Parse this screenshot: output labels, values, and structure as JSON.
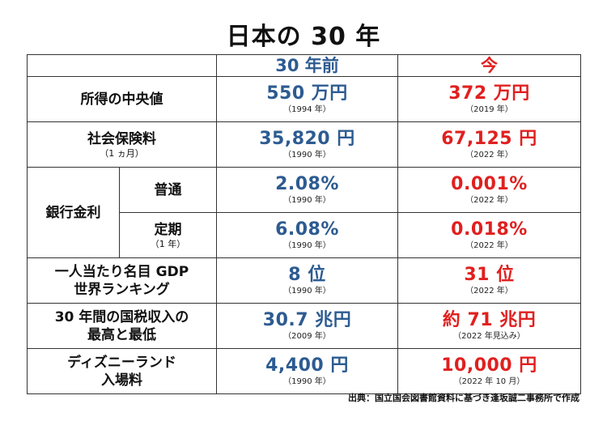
{
  "title": "日本の 30 年",
  "columns": {
    "then": "30 年前",
    "now": "今"
  },
  "rows": {
    "median_income": {
      "label": "所得の中央値",
      "then_value": "550 万円",
      "then_year": "（1994 年）",
      "now_value": "372 万円",
      "now_year": "（2019 年）"
    },
    "social_insurance": {
      "label": "社会保険料",
      "sublabel": "（1 ヵ月）",
      "then_value": "35,820 円",
      "then_year": "（1990 年）",
      "now_value": "67,125 円",
      "now_year": "（2022 年）"
    },
    "bank_interest": {
      "label": "銀行金利",
      "ordinary": {
        "label": "普通",
        "then_value": "2.08%",
        "then_year": "（1990 年）",
        "now_value": "0.001%",
        "now_year": "（2022 年）"
      },
      "fixed": {
        "label": "定期",
        "sublabel": "（1 年）",
        "then_value": "6.08%",
        "then_year": "（1990 年）",
        "now_value": "0.018%",
        "now_year": "（2022 年）"
      }
    },
    "gdp_rank": {
      "label_line1": "一人当たり名目 GDP",
      "label_line2": "世界ランキング",
      "then_value": "8 位",
      "then_year": "（1990 年）",
      "now_value": "31 位",
      "now_year": "（2022 年）"
    },
    "tax_revenue": {
      "label_line1": "30 年間の国税収入の",
      "label_line2": "最高と最低",
      "then_value": "30.7 兆円",
      "then_year": "（2009 年）",
      "now_value": "約 71 兆円",
      "now_year": "（2022 年見込み）"
    },
    "disneyland": {
      "label_line1": "ディズニーランド",
      "label_line2": "入場料",
      "then_value": "4,400 円",
      "then_year": "（1990 年）",
      "now_value": "10,000 円",
      "now_year": "（2022 年 10 月）"
    }
  },
  "source": "出典：国立国会図書館資料に基づき逢坂誠二事務所で作成",
  "colors": {
    "then": "#2d5b91",
    "now": "#e0201f",
    "border": "#333333"
  }
}
